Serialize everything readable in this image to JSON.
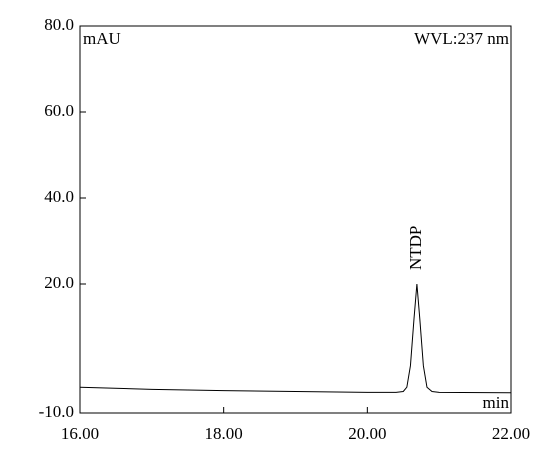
{
  "chart_data": {
    "type": "line",
    "y_unit_label": "mAU",
    "wavelength_label": "WVL:237 nm",
    "x_unit_label": "min",
    "peak_label": "NTDP",
    "x": [
      16.0,
      17.0,
      18.0,
      19.0,
      20.0,
      20.4,
      20.5,
      20.55,
      20.6,
      20.65,
      20.69,
      20.73,
      20.78,
      20.83,
      20.9,
      21.0,
      22.0
    ],
    "series": [
      {
        "name": "NTDP",
        "color": "#000000",
        "values": [
          -4.0,
          -4.5,
          -4.8,
          -5.0,
          -5.2,
          -5.2,
          -5.0,
          -4.0,
          1.0,
          12.0,
          20.0,
          12.0,
          1.0,
          -4.0,
          -5.0,
          -5.2,
          -5.3
        ]
      }
    ],
    "xlim": [
      16.0,
      22.0
    ],
    "xticks": [
      {
        "value": 16,
        "label": "16.00"
      },
      {
        "value": 18,
        "label": "18.00"
      },
      {
        "value": 20,
        "label": "20.00"
      },
      {
        "value": 22,
        "label": "22.00"
      }
    ],
    "ylim": [
      -10,
      80
    ],
    "yticks": [
      {
        "value": -10,
        "label": "-10.0"
      },
      {
        "value": 20,
        "label": "20.0"
      },
      {
        "value": 40,
        "label": "40.0"
      },
      {
        "value": 60,
        "label": "60.0"
      },
      {
        "value": 80,
        "label": "80.0"
      }
    ]
  }
}
